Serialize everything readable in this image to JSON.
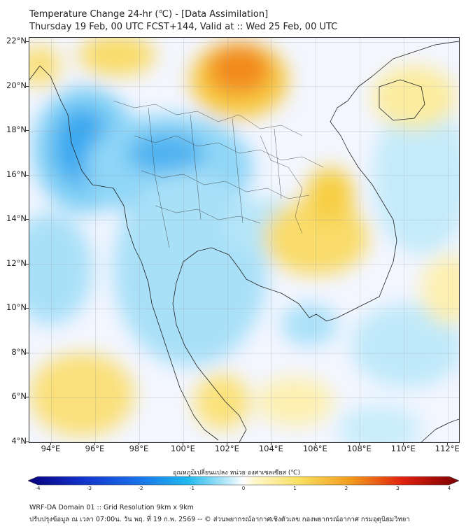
{
  "header": {
    "title": "Temperature Change 24-hr (℃) - [Data Assimilation]",
    "subtitle": "Thursday 19 Feb, 00 UTC FCST+144, Valid at :: Wed 25 Feb, 00 UTC"
  },
  "map": {
    "lon_range": [
      93,
      112.5
    ],
    "lat_range": [
      4,
      22.2
    ],
    "lon_ticks": [
      "94°E",
      "96°E",
      "98°E",
      "100°E",
      "102°E",
      "104°E",
      "106°E",
      "108°E",
      "110°E",
      "112°E"
    ],
    "lat_ticks": [
      "22°N",
      "20°N",
      "18°N",
      "16°N",
      "14°N",
      "12°N",
      "10°N",
      "8°N",
      "6°N",
      "4°N"
    ],
    "gridlines": true,
    "warm_color": "#f2b400",
    "cool_color": "#1a9fe8"
  },
  "colorbar": {
    "label": "อุณหภูมิเปลี่ยนแปลง หน่วย องศาเซลเซียส (℃)",
    "ticks": [
      "-4",
      "-3",
      "-2",
      "-1",
      "0",
      "1",
      "2",
      "3",
      "4"
    ],
    "range": [
      -4,
      4
    ]
  },
  "footer": {
    "line1": "WRF-DA Domain 01 :: Grid Resolution 9km x 9km",
    "line2": "ปรับปรุงข้อมูล ณ เวลา 07:00น. วัน พฤ. ที่ 19 ก.พ. 2569 -- © ส่วนพยากรณ์อากาศเชิงตัวเลข กองพยากรณ์อากาศ กรมอุตุนิยมวิทยา"
  }
}
